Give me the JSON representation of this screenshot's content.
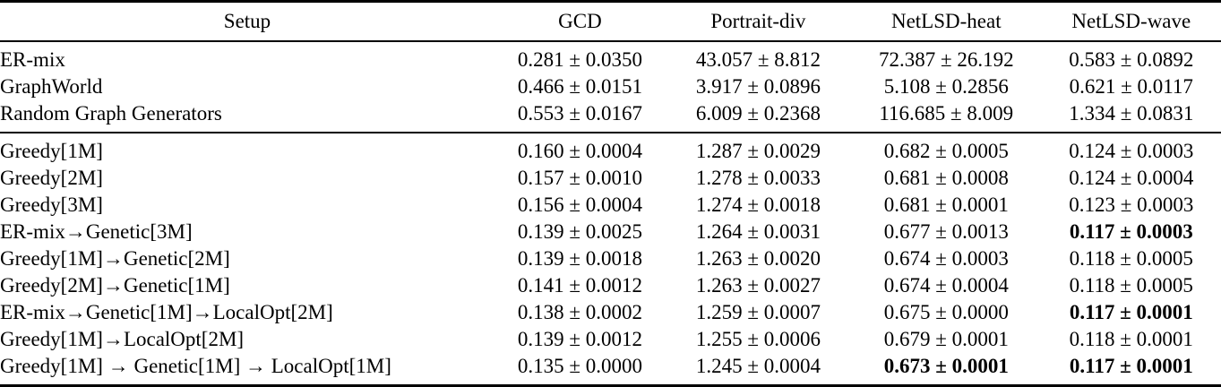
{
  "table": {
    "columns": [
      {
        "key": "setup",
        "label": "Setup"
      },
      {
        "key": "gcd",
        "label": "GCD"
      },
      {
        "key": "portrait",
        "label": "Portrait-div"
      },
      {
        "key": "heat",
        "label": "NetLSD-heat"
      },
      {
        "key": "wave",
        "label": "NetLSD-wave"
      }
    ],
    "sections": [
      {
        "rows": [
          {
            "setup": "ER-mix",
            "cells": [
              "0.281 ± 0.0350",
              "43.057 ± 8.812",
              "72.387 ± 26.192",
              "0.583 ± 0.0892"
            ],
            "bold": [
              false,
              false,
              false,
              false
            ]
          },
          {
            "setup": "GraphWorld",
            "cells": [
              "0.466 ± 0.0151",
              "3.917 ± 0.0896",
              "5.108 ± 0.2856",
              "0.621 ± 0.0117"
            ],
            "bold": [
              false,
              false,
              false,
              false
            ]
          },
          {
            "setup": "Random Graph Generators",
            "cells": [
              "0.553 ± 0.0167",
              "6.009 ± 0.2368",
              "116.685 ± 8.009",
              "1.334 ± 0.0831"
            ],
            "bold": [
              false,
              false,
              false,
              false
            ]
          }
        ]
      },
      {
        "rows": [
          {
            "setup": "Greedy[1M]",
            "cells": [
              "0.160 ± 0.0004",
              "1.287 ± 0.0029",
              "0.682 ± 0.0005",
              "0.124 ± 0.0003"
            ],
            "bold": [
              false,
              false,
              false,
              false
            ]
          },
          {
            "setup": "Greedy[2M]",
            "cells": [
              "0.157 ± 0.0010",
              "1.278 ± 0.0033",
              "0.681 ± 0.0008",
              "0.124 ± 0.0004"
            ],
            "bold": [
              false,
              false,
              false,
              false
            ]
          },
          {
            "setup": "Greedy[3M]",
            "cells": [
              "0.156 ± 0.0004",
              "1.274 ± 0.0018",
              "0.681 ± 0.0001",
              "0.123 ± 0.0003"
            ],
            "bold": [
              false,
              false,
              false,
              false
            ]
          },
          {
            "setup": "ER-mix→Genetic[3M]",
            "cells": [
              "0.139 ± 0.0025",
              "1.264 ± 0.0031",
              "0.677 ± 0.0013",
              "0.117 ± 0.0003"
            ],
            "bold": [
              false,
              false,
              false,
              true
            ]
          },
          {
            "setup": "Greedy[1M]→Genetic[2M]",
            "cells": [
              "0.139 ± 0.0018",
              "1.263 ± 0.0020",
              "0.674 ± 0.0003",
              "0.118 ± 0.0005"
            ],
            "bold": [
              false,
              false,
              false,
              false
            ]
          },
          {
            "setup": "Greedy[2M]→Genetic[1M]",
            "cells": [
              "0.141 ± 0.0012",
              "1.263 ± 0.0027",
              "0.674 ± 0.0004",
              "0.118 ± 0.0005"
            ],
            "bold": [
              false,
              false,
              false,
              false
            ]
          },
          {
            "setup": "ER-mix→Genetic[1M]→LocalOpt[2M]",
            "cells": [
              "0.138 ± 0.0002",
              "1.259 ± 0.0007",
              "0.675 ± 0.0000",
              "0.117 ± 0.0001"
            ],
            "bold": [
              false,
              false,
              false,
              true
            ]
          },
          {
            "setup": "Greedy[1M]→LocalOpt[2M]",
            "cells": [
              "0.139 ± 0.0012",
              "1.255 ± 0.0006",
              "0.679 ± 0.0001",
              "0.118 ± 0.0001"
            ],
            "bold": [
              false,
              false,
              false,
              false
            ]
          },
          {
            "setup": "Greedy[1M] → Genetic[1M] → LocalOpt[1M]",
            "cells": [
              "0.135 ± 0.0000",
              "1.245 ± 0.0004",
              "0.673 ± 0.0001",
              "0.117 ± 0.0001"
            ],
            "bold": [
              false,
              false,
              true,
              true
            ]
          }
        ]
      }
    ]
  }
}
